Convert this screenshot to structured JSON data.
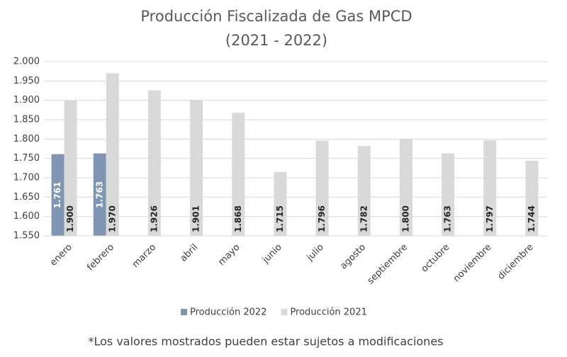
{
  "chart_data": {
    "type": "bar",
    "title": "Producción Fiscalizada de Gas MPCD",
    "subtitle": "(2021 - 2022)",
    "categories": [
      "enero",
      "febrero",
      "marzo",
      "abril",
      "mayo",
      "junio",
      "julio",
      "agosto",
      "septiembre",
      "octubre",
      "noviembre",
      "diciembre"
    ],
    "series": [
      {
        "name": "Producción 2022",
        "color": "#7f96b2",
        "values": [
          1761,
          1763,
          null,
          null,
          null,
          null,
          null,
          null,
          null,
          null,
          null,
          null
        ],
        "value_labels": [
          "1.761",
          "1.763",
          null,
          null,
          null,
          null,
          null,
          null,
          null,
          null,
          null,
          null
        ]
      },
      {
        "name": "Producción 2021",
        "color": "#d9d9d9",
        "values": [
          1900,
          1970,
          1926,
          1901,
          1868,
          1715,
          1796,
          1782,
          1800,
          1763,
          1797,
          1744
        ],
        "value_labels": [
          "1.900",
          "1.970",
          "1.926",
          "1.901",
          "1.868",
          "1.715",
          "1.796",
          "1.782",
          "1.800",
          "1.763",
          "1.797",
          "1.744"
        ]
      }
    ],
    "ylim": [
      1550,
      2000
    ],
    "yticks": [
      {
        "value": 1550,
        "label": "1.550"
      },
      {
        "value": 1600,
        "label": "1.600"
      },
      {
        "value": 1650,
        "label": "1.650"
      },
      {
        "value": 1700,
        "label": "1.700"
      },
      {
        "value": 1750,
        "label": "1.750"
      },
      {
        "value": 1800,
        "label": "1.800"
      },
      {
        "value": 1850,
        "label": "1.850"
      },
      {
        "value": 1900,
        "label": "1.900"
      },
      {
        "value": 1950,
        "label": "1.950"
      },
      {
        "value": 2000,
        "label": "2.000"
      }
    ],
    "grid": true,
    "legend": "bottom",
    "footnote": "*Los valores mostrados pueden estar sujetos a modificaciones"
  }
}
